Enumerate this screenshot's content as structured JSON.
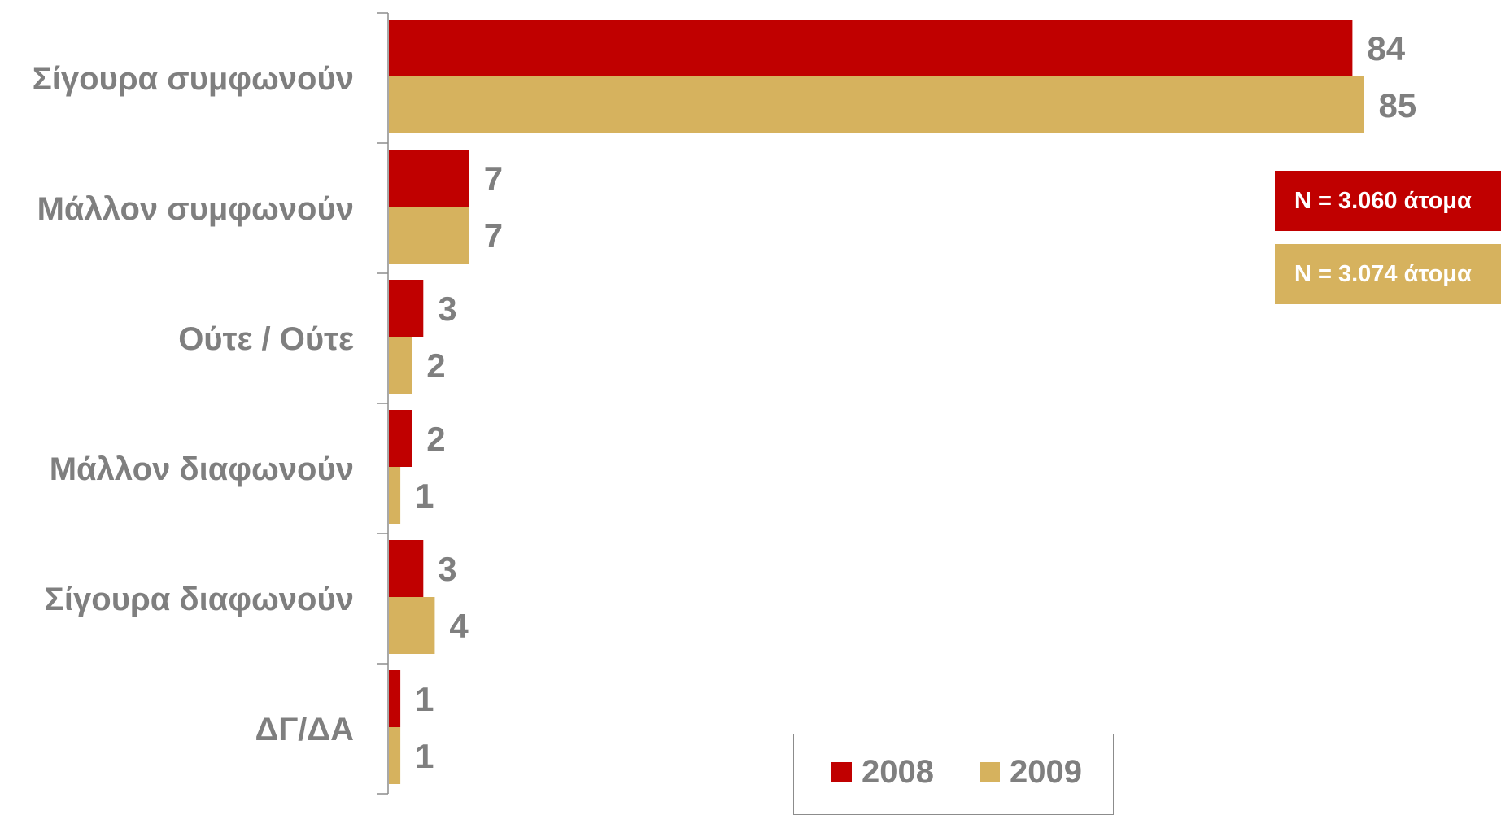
{
  "chart_data": {
    "type": "bar",
    "orientation": "horizontal",
    "categories": [
      "Σίγουρα συμφωνούν",
      "Μάλλον συμφωνούν",
      "Ούτε / Ούτε",
      "Μάλλον διαφωνούν",
      "Σίγουρα διαφωνούν",
      "ΔΓ/ΔΑ"
    ],
    "series": [
      {
        "name": "2008",
        "color": "#c00000",
        "values": [
          84,
          7,
          3,
          2,
          3,
          1
        ]
      },
      {
        "name": "2009",
        "color": "#d6b25e",
        "values": [
          85,
          7,
          2,
          1,
          4,
          1
        ]
      }
    ],
    "xlim": [
      0,
      100
    ],
    "grid": false,
    "legend_position": "bottom",
    "data_labels": true
  },
  "annotations": {
    "n_2008": "N = 3.060 άτομα",
    "n_2009": "N = 3.074 άτομα"
  }
}
